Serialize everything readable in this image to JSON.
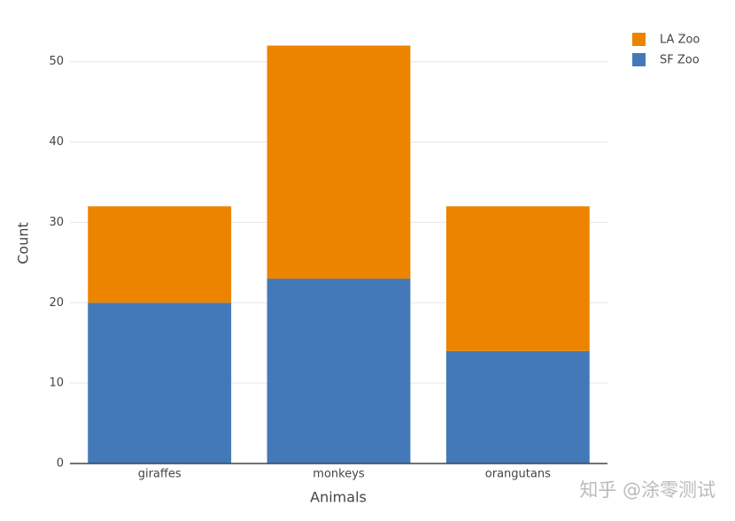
{
  "chart_data": {
    "type": "stacked_bar",
    "categories": [
      "giraffes",
      "monkeys",
      "orangutans"
    ],
    "series": [
      {
        "name": "SF Zoo",
        "color": "#4479b9",
        "values": [
          20,
          23,
          14
        ]
      },
      {
        "name": "LA Zoo",
        "color": "#ec8400",
        "values": [
          12,
          29,
          18
        ]
      }
    ],
    "xlabel": "Animals",
    "ylabel": "Count",
    "ylim": [
      0,
      54.7
    ],
    "yticks": [
      0,
      10,
      20,
      30,
      40,
      50
    ],
    "grid": true,
    "legend": "top-right outside",
    "watermark": "知乎 @涂零测试"
  }
}
